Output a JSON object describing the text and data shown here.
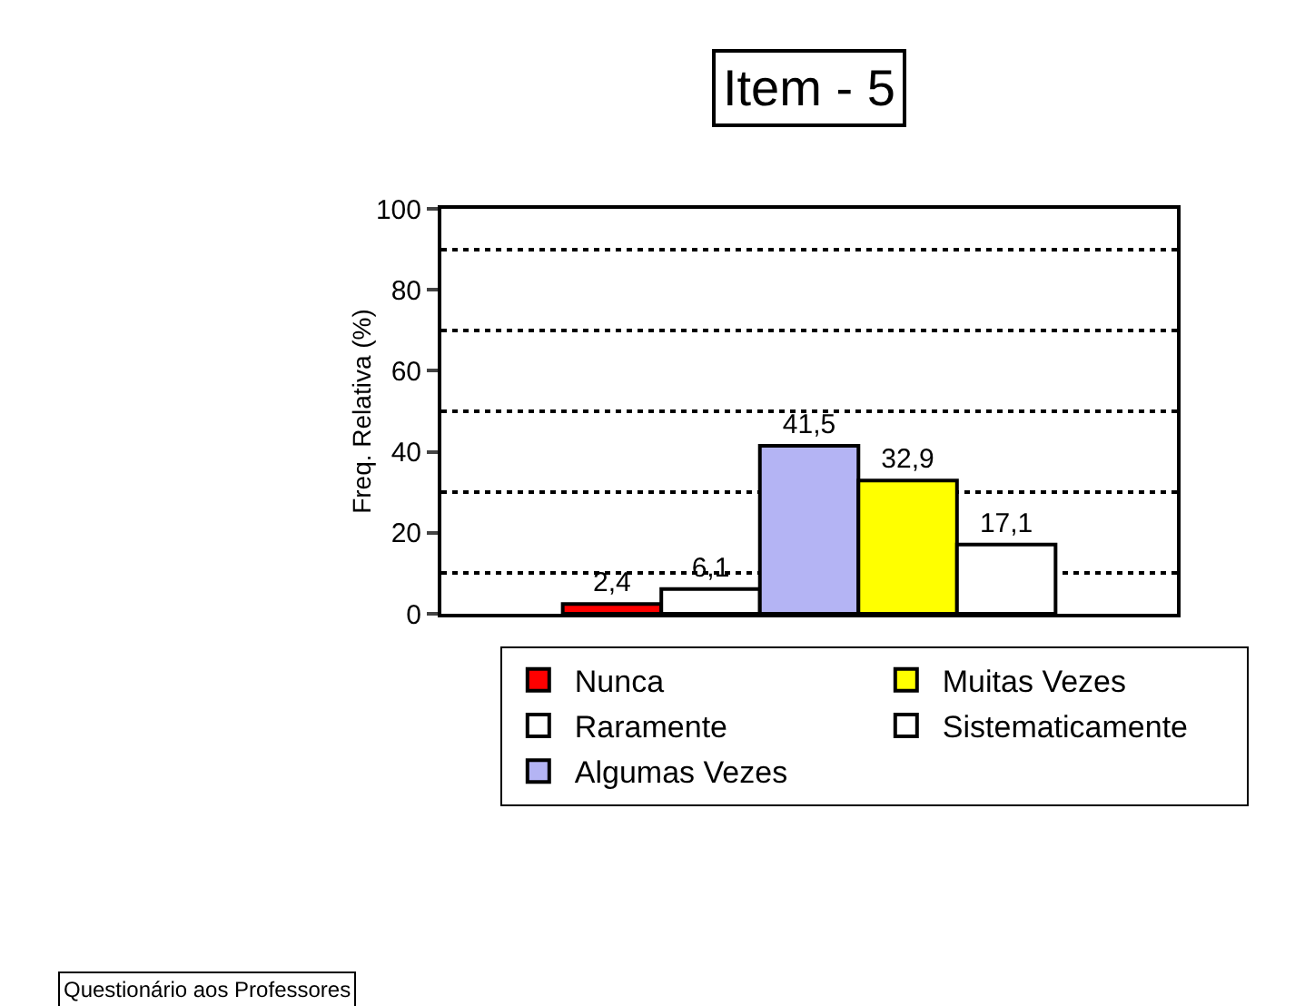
{
  "chart_data": {
    "type": "bar",
    "title": "Item - 5",
    "ylabel": "Freq. Relativa (%)",
    "categories": [
      null
    ],
    "series": [
      {
        "name": "Nunca",
        "color": "#ff0000",
        "values": [
          2.4
        ],
        "value_labels": [
          "2,4"
        ]
      },
      {
        "name": "Raramente",
        "color": "#ffffff",
        "values": [
          6.1
        ],
        "value_labels": [
          "6,1"
        ]
      },
      {
        "name": "Algumas Vezes",
        "color": "#b4b4f4",
        "values": [
          41.5
        ],
        "value_labels": [
          "41,5"
        ]
      },
      {
        "name": "Muitas Vezes",
        "color": "#ffff00",
        "values": [
          32.9
        ],
        "value_labels": [
          "32,9"
        ]
      },
      {
        "name": "Sistematicamente",
        "color": "#ffffff",
        "values": [
          17.1
        ],
        "value_labels": [
          "17,1"
        ]
      }
    ],
    "ylim": [
      0,
      100
    ],
    "yticks": [
      0,
      {
        "value": 10,
        "label": null
      },
      20,
      {
        "value": 30,
        "label": null
      },
      40,
      {
        "value": 50,
        "label": null
      },
      60,
      {
        "value": 70,
        "label": null
      },
      80,
      {
        "value": 90,
        "label": null
      },
      100
    ],
    "grid": "minor",
    "legend": "bottom",
    "annotations": [
      "Questionário aos Professores"
    ]
  }
}
